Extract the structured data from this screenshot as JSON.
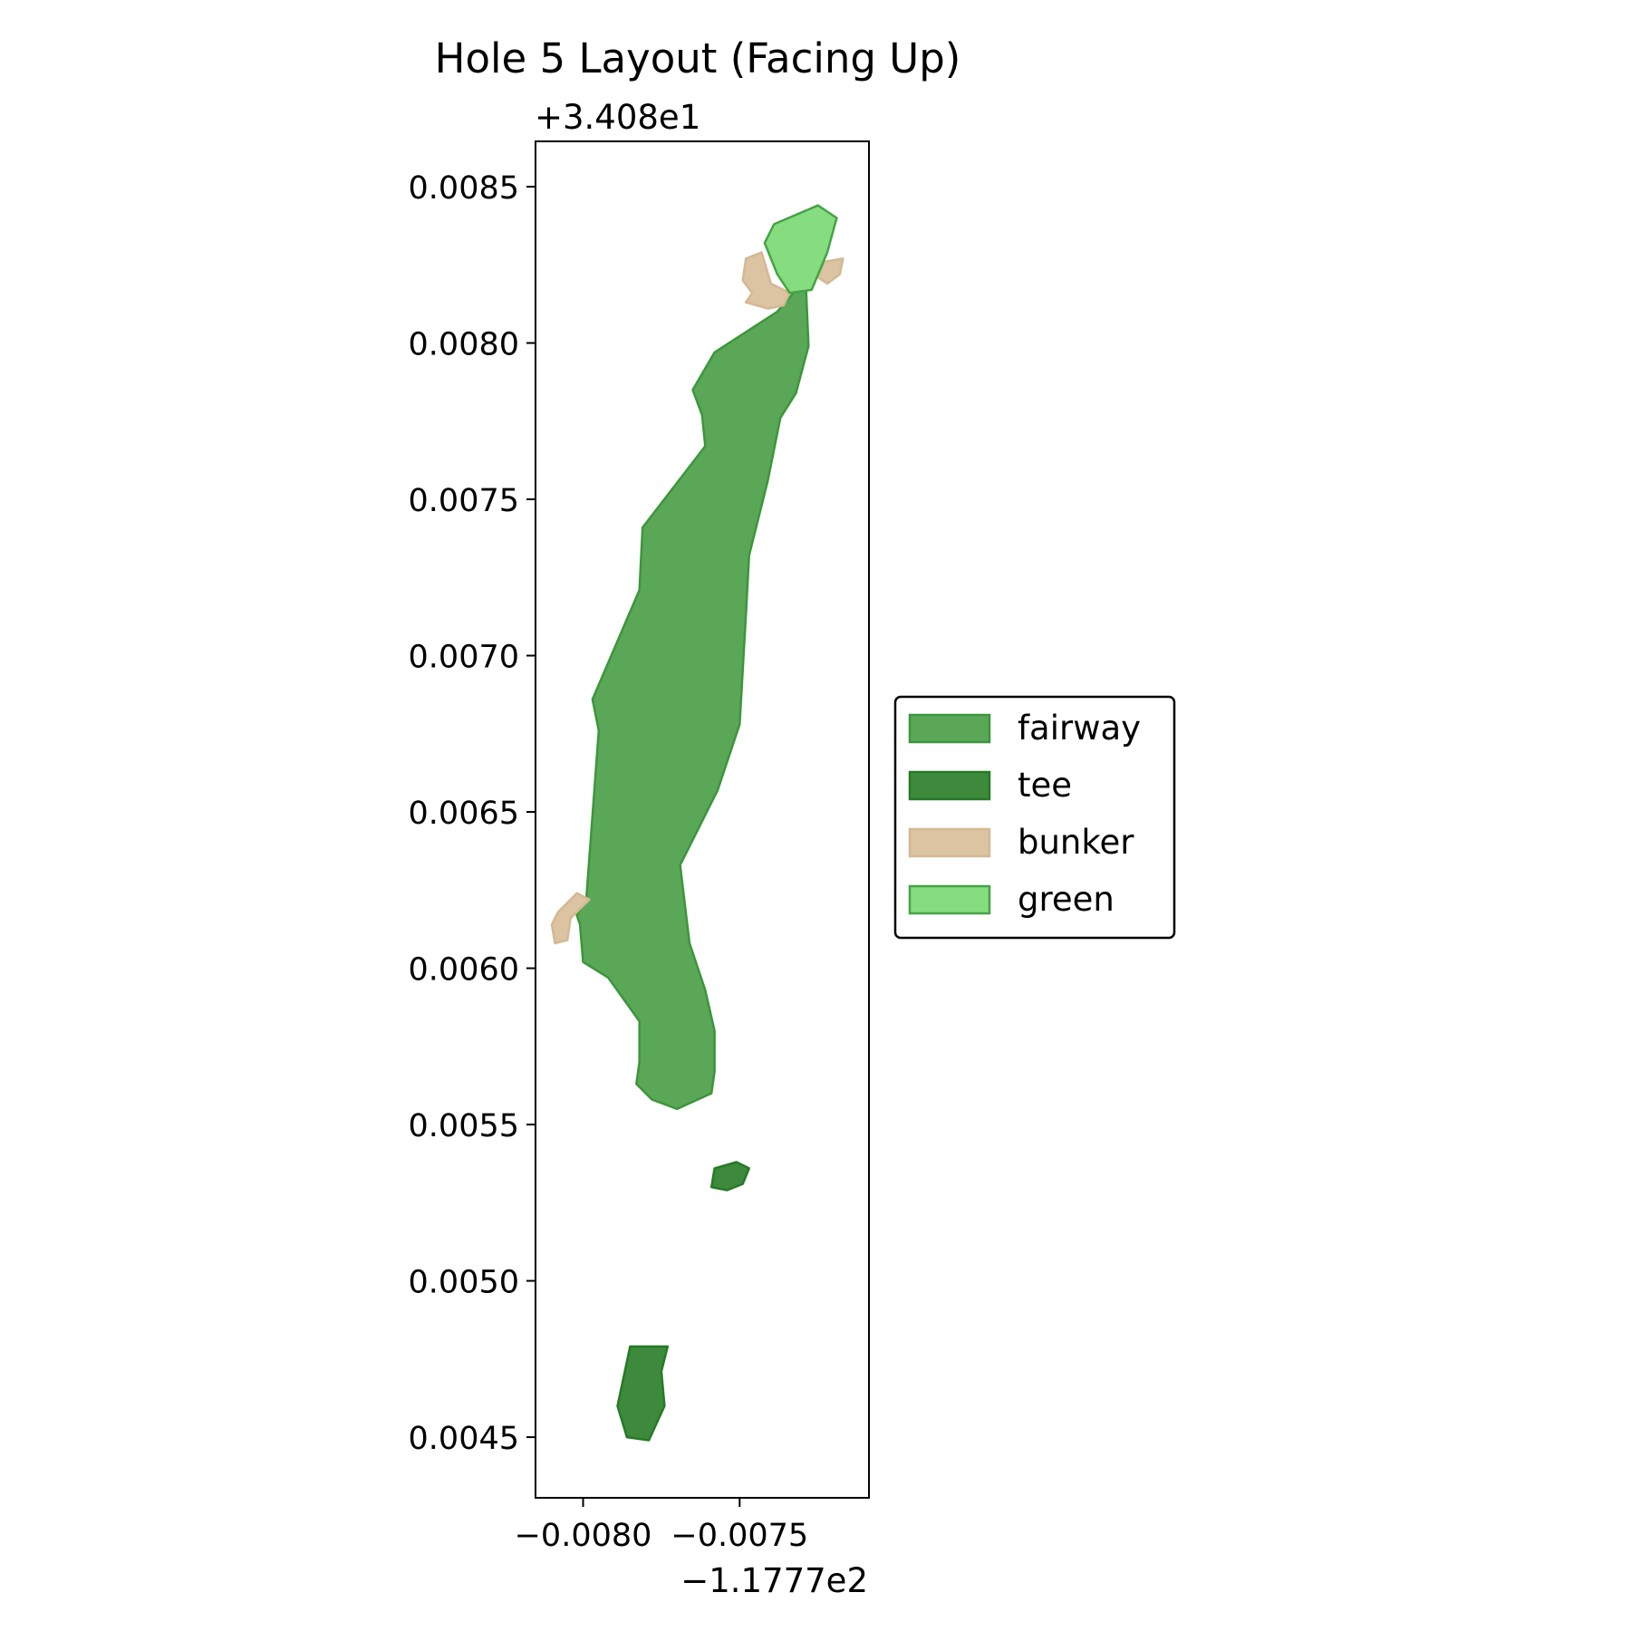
{
  "chart_data": {
    "type": "map",
    "title": "Hole 5 Layout (Facing Up)",
    "x_offset_label": "−1.1777e2",
    "y_offset_label": "+3.408e1",
    "x_ticks": [
      {
        "value": -0.008,
        "label": "−0.0080"
      },
      {
        "value": -0.0075,
        "label": "−0.0075"
      }
    ],
    "y_ticks": [
      {
        "value": 0.0085,
        "label": "0.0085"
      },
      {
        "value": 0.008,
        "label": "0.0080"
      },
      {
        "value": 0.0075,
        "label": "0.0075"
      },
      {
        "value": 0.007,
        "label": "0.0070"
      },
      {
        "value": 0.0065,
        "label": "0.0065"
      },
      {
        "value": 0.006,
        "label": "0.0060"
      },
      {
        "value": 0.0055,
        "label": "0.0055"
      },
      {
        "value": 0.005,
        "label": "0.0050"
      },
      {
        "value": 0.0045,
        "label": "0.0045"
      }
    ],
    "xlim": [
      -0.008152,
      -0.007087
    ],
    "ylim": [
      0.004306,
      0.008645
    ],
    "grid": false,
    "legend_position": "center-right",
    "legend": [
      {
        "key": "fairway",
        "label": "fairway"
      },
      {
        "key": "tee",
        "label": "tee"
      },
      {
        "key": "bunker",
        "label": "bunker"
      },
      {
        "key": "green",
        "label": "green"
      }
    ],
    "styles": {
      "fairway": {
        "fill": "#5aa857",
        "stroke": "#3c963c"
      },
      "tee": {
        "fill": "#3e8a3c",
        "stroke": "#267a26"
      },
      "bunker": {
        "fill": "#dcc3a2",
        "stroke": "#d4b894"
      },
      "green": {
        "fill": "#86dd7f",
        "stroke": "#46a346"
      }
    },
    "features": [
      {
        "type": "fairway",
        "points": [
          [
            -0.0074,
            0.0083
          ],
          [
            -0.00732,
            0.00817
          ],
          [
            -0.00738,
            0.0081
          ],
          [
            -0.00758,
            0.00797
          ],
          [
            -0.00765,
            0.00785
          ],
          [
            -0.00762,
            0.00777
          ],
          [
            -0.00761,
            0.00767
          ],
          [
            -0.00781,
            0.00741
          ],
          [
            -0.00782,
            0.00721
          ],
          [
            -0.00797,
            0.00686
          ],
          [
            -0.00795,
            0.00676
          ],
          [
            -0.00799,
            0.00622
          ],
          [
            -0.00802,
            0.00617
          ],
          [
            -0.00801,
            0.00614
          ],
          [
            -0.008,
            0.00602
          ],
          [
            -0.00792,
            0.00597
          ],
          [
            -0.00782,
            0.00583
          ],
          [
            -0.00782,
            0.0057
          ],
          [
            -0.00783,
            0.00563
          ],
          [
            -0.00778,
            0.00558
          ],
          [
            -0.0077,
            0.00555
          ],
          [
            -0.00759,
            0.0056
          ],
          [
            -0.00758,
            0.00567
          ],
          [
            -0.00758,
            0.0058
          ],
          [
            -0.00761,
            0.00593
          ],
          [
            -0.00766,
            0.00608
          ],
          [
            -0.00769,
            0.00633
          ],
          [
            -0.00757,
            0.00657
          ],
          [
            -0.0075,
            0.00678
          ],
          [
            -0.00748,
            0.00713
          ],
          [
            -0.00747,
            0.00732
          ],
          [
            -0.00741,
            0.00756
          ],
          [
            -0.00737,
            0.00776
          ],
          [
            -0.00732,
            0.00784
          ],
          [
            -0.00728,
            0.00799
          ],
          [
            -0.00729,
            0.00822
          ]
        ]
      },
      {
        "type": "tee",
        "points": [
          [
            -0.00758,
            0.00536
          ],
          [
            -0.00751,
            0.00538
          ],
          [
            -0.00747,
            0.00536
          ],
          [
            -0.00749,
            0.00531
          ],
          [
            -0.00754,
            0.00529
          ],
          [
            -0.00759,
            0.0053
          ]
        ]
      },
      {
        "type": "tee",
        "points": [
          [
            -0.00785,
            0.00479
          ],
          [
            -0.00773,
            0.00479
          ],
          [
            -0.00775,
            0.00471
          ],
          [
            -0.00774,
            0.0046
          ],
          [
            -0.00779,
            0.00449
          ],
          [
            -0.00786,
            0.0045
          ],
          [
            -0.00789,
            0.0046
          ]
        ]
      },
      {
        "type": "bunker",
        "points": [
          [
            -0.00743,
            0.00829
          ],
          [
            -0.00748,
            0.00827
          ],
          [
            -0.00749,
            0.0082
          ],
          [
            -0.00746,
            0.00816
          ],
          [
            -0.00748,
            0.00813
          ],
          [
            -0.00741,
            0.00811
          ],
          [
            -0.00736,
            0.00812
          ],
          [
            -0.00734,
            0.00816
          ],
          [
            -0.0074,
            0.00819
          ]
        ]
      },
      {
        "type": "bunker",
        "points": [
          [
            -0.00723,
            0.00826
          ],
          [
            -0.00717,
            0.00827
          ],
          [
            -0.00718,
            0.00822
          ],
          [
            -0.00722,
            0.00819
          ],
          [
            -0.00725,
            0.00821
          ]
        ]
      },
      {
        "type": "bunker",
        "points": [
          [
            -0.00802,
            0.00624
          ],
          [
            -0.00798,
            0.00622
          ],
          [
            -0.00804,
            0.00616
          ],
          [
            -0.00805,
            0.00609
          ],
          [
            -0.00809,
            0.00608
          ],
          [
            -0.0081,
            0.00614
          ],
          [
            -0.00808,
            0.00618
          ]
        ]
      },
      {
        "type": "green",
        "points": [
          [
            -0.00739,
            0.00838
          ],
          [
            -0.00725,
            0.00844
          ],
          [
            -0.00719,
            0.0084
          ],
          [
            -0.00722,
            0.00829
          ],
          [
            -0.00727,
            0.00817
          ],
          [
            -0.00734,
            0.00816
          ],
          [
            -0.00738,
            0.00822
          ],
          [
            -0.00742,
            0.00832
          ]
        ]
      }
    ]
  }
}
